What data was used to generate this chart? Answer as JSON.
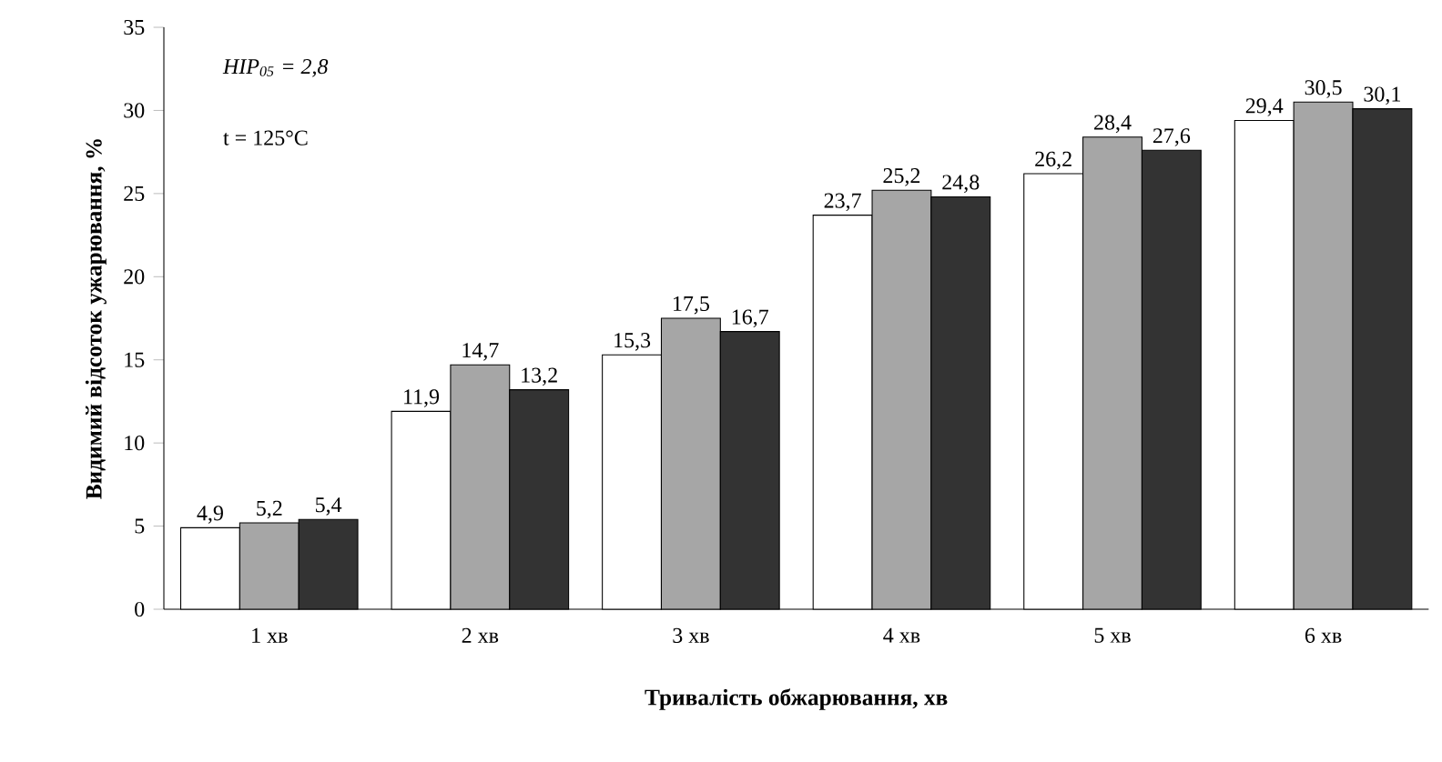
{
  "chart_data": {
    "type": "bar",
    "xlabel": "Тривалість обжарювання, хв",
    "ylabel": "Видимий відсоток ужарювання, %",
    "categories": [
      "1 хв",
      "2 хв",
      "3 хв",
      "4 хв",
      "5 хв",
      "6 хв"
    ],
    "series": [
      {
        "color": "#ffffff",
        "values": [
          4.9,
          11.9,
          15.3,
          23.7,
          26.2,
          29.4
        ],
        "value_labels": [
          "4,9",
          "11,9",
          "15,3",
          "23,7",
          "26,2",
          "29,4"
        ]
      },
      {
        "color": "#a6a6a6",
        "values": [
          5.2,
          14.7,
          17.5,
          25.2,
          28.4,
          30.5
        ],
        "value_labels": [
          "5,2",
          "14,7",
          "17,5",
          "25,2",
          "28,4",
          "30,5"
        ]
      },
      {
        "color": "#333333",
        "values": [
          5.4,
          13.2,
          16.7,
          24.8,
          27.6,
          30.1
        ],
        "value_labels": [
          "5,4",
          "13,2",
          "16,7",
          "24,8",
          "27,6",
          "30,1"
        ]
      }
    ],
    "ylim": [
      0,
      35
    ],
    "yticks": [
      0,
      5,
      10,
      15,
      20,
      25,
      30,
      35
    ],
    "annotations": [
      "НІР$_{05}$ = 2,8",
      "t = 125°C"
    ]
  }
}
